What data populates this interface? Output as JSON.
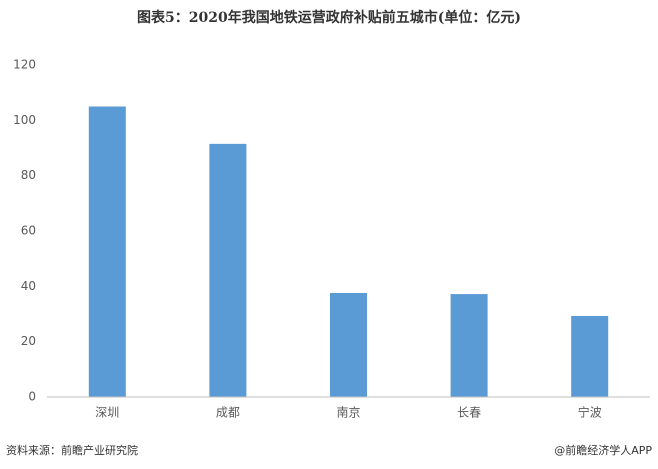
{
  "chart_data": {
    "type": "bar",
    "title": "图表5：2020年我国地铁运营政府补贴前五城市(单位：亿元)",
    "categories": [
      "深圳",
      "成都",
      "南京",
      "长春",
      "宁波"
    ],
    "values": [
      105,
      91.5,
      37.6,
      37.2,
      29.3
    ],
    "color": "#5b9bd5",
    "ylim": [
      0,
      120
    ],
    "yticks": [
      0,
      20,
      40,
      60,
      80,
      100,
      120
    ],
    "grid": false,
    "source": "资料来源：前瞻产业研究院",
    "credit": "@前瞻经济学人APP"
  }
}
